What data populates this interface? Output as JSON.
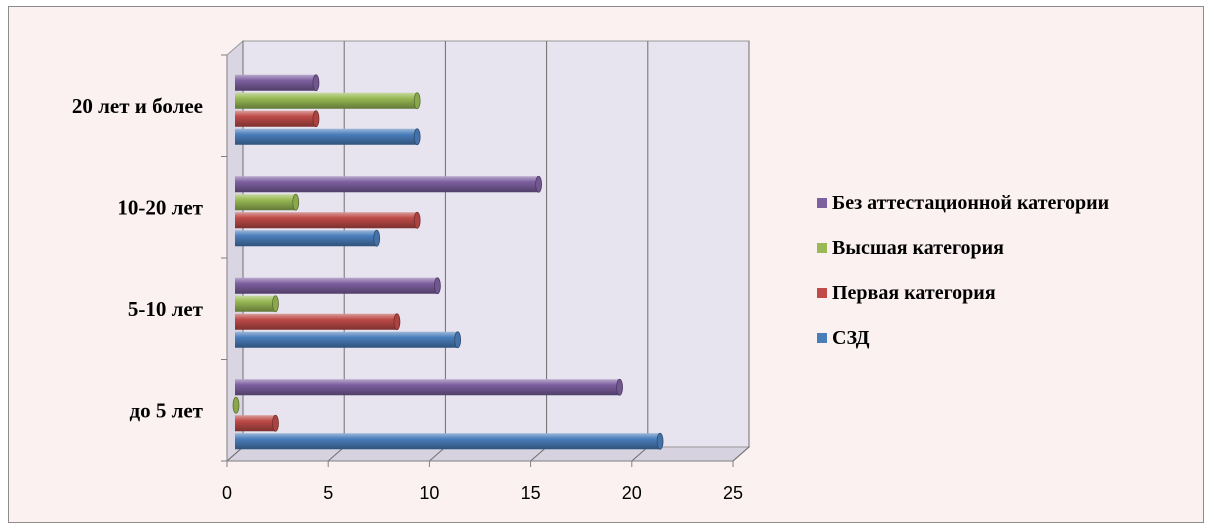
{
  "chart_data": {
    "type": "bar",
    "orientation": "horizontal",
    "style": "3d-cylinder",
    "categories": [
      "до 5 лет",
      "5-10 лет",
      "10-20 лет",
      "20 лет и более"
    ],
    "series": [
      {
        "name": "СЗД",
        "color": "#4a7ebb",
        "values": [
          21,
          11,
          7,
          9
        ]
      },
      {
        "name": "Первая категория",
        "color": "#be4b48",
        "values": [
          2,
          8,
          9,
          4
        ]
      },
      {
        "name": "Высшая категория",
        "color": "#98b954",
        "values": [
          0,
          2,
          3,
          9
        ]
      },
      {
        "name": "Без аттестационной категории",
        "color": "#7d60a0",
        "values": [
          19,
          10,
          15,
          4
        ]
      }
    ],
    "xlim": [
      0,
      25
    ],
    "xticks": [
      "0",
      "5",
      "10",
      "15",
      "20",
      "25"
    ],
    "grid": true,
    "legend_position": "right",
    "title": "",
    "xlabel": "",
    "ylabel": ""
  }
}
